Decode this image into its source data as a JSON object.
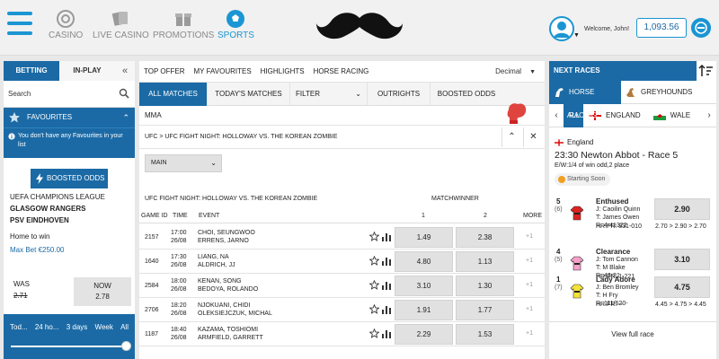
{
  "nav": {
    "items": [
      {
        "label": "CASINO",
        "icon": "casino-chip-icon"
      },
      {
        "label": "LIVE CASINO",
        "icon": "playing-cards-icon"
      },
      {
        "label": "PROMOTIONS",
        "icon": "gift-box-icon"
      },
      {
        "label": "SPORTS",
        "icon": "football-icon",
        "active": true
      }
    ]
  },
  "user": {
    "welcome": "Welcome, John!",
    "balance": "1,093.56"
  },
  "left": {
    "tabs": {
      "betting": "BETTING",
      "inplay": "IN-PLAY"
    },
    "search_label": "Search",
    "favourites": {
      "title": "FAVOURITES",
      "note": "You don't have any Favourites in your list"
    },
    "boost": {
      "badge": "BOOSTED ODDS",
      "league": "UEFA CHAMPIONS LEAGUE",
      "team1": "GLASGOW RANGERS",
      "team2": "PSV EINDHOVEN",
      "market": "Home to win",
      "maxbet": "Max Bet €250.00",
      "was_label": "WAS",
      "was_value": "2.71",
      "now_label": "NOW",
      "now_value": "2.78"
    },
    "time_filter": [
      "Tod...",
      "24 ho...",
      "3 days",
      "Week",
      "All"
    ]
  },
  "center": {
    "top_nav": [
      "TOP OFFER",
      "MY FAVOURITES",
      "HIGHLIGHTS",
      "HORSE RACING"
    ],
    "odds_format": "Decimal",
    "tabs": [
      "ALL MATCHES",
      "TODAY'S MATCHES",
      "FILTER",
      "OUTRIGHTS",
      "BOOSTED ODDS"
    ],
    "sport": "MMA",
    "event_header": "UFC > UFC FIGHT NIGHT: HOLLOWAY VS. THE KOREAN ZOMBIE",
    "market_select": "MAIN",
    "event_title": "UFC FIGHT NIGHT: HOLLOWAY VS. THE KOREAN ZOMBIE",
    "market_label": "MATCHWINNER",
    "columns": {
      "game_id": "GAME ID",
      "time": "TIME",
      "event": "EVENT",
      "col1": "1",
      "col2": "2",
      "more": "MORE"
    },
    "rows": [
      {
        "id": "2157",
        "time": "17:00",
        "date": "26/08",
        "f1": "CHOI, SEUNGWOO",
        "f2": "ERRENS, JARNO",
        "o1": "1.49",
        "o2": "2.38",
        "more": "+1"
      },
      {
        "id": "1640",
        "time": "17:30",
        "date": "26/08",
        "f1": "LIANG, NA",
        "f2": "ALDRICH, JJ",
        "o1": "4.80",
        "o2": "1.13",
        "more": "+1"
      },
      {
        "id": "2584",
        "time": "18:00",
        "date": "26/08",
        "f1": "KENAN, SONG",
        "f2": "BEDOYA, ROLANDO",
        "o1": "3.10",
        "o2": "1.30",
        "more": "+1"
      },
      {
        "id": "2706",
        "time": "18:20",
        "date": "26/08",
        "f1": "NJOKUANI, CHIDI",
        "f2": "OLEKSIEJCZUK, MICHAL",
        "o1": "1.91",
        "o2": "1.77",
        "more": "+1"
      },
      {
        "id": "1187",
        "time": "18:40",
        "date": "26/08",
        "f1": "KAZAMA, TOSHIOMI",
        "f2": "ARMFIELD, GARRETT",
        "o1": "2.29",
        "o2": "1.53",
        "more": "+1"
      }
    ]
  },
  "right": {
    "title": "NEXT RACES",
    "tabs": {
      "horse": "HORSE RACING",
      "greyhound": "GREYHOUNDS"
    },
    "regions": {
      "all": "ALL",
      "england": "ENGLAND",
      "wales": "WALE"
    },
    "race": {
      "country": "England",
      "title": "23:30 Newton Abbot - Race 5",
      "terms": "E/W:1/4 of win odd,2 place",
      "status": "Starting Soon"
    },
    "runners": [
      {
        "num": "5",
        "draw": "(6)",
        "name": "Enthused",
        "jockey": "J: Caoilin Quinn",
        "trainer": "T: James Owen",
        "rating": "R: 4-41322",
        "form": "HR.FR: 831-010",
        "odd": "2.90",
        "moves": "2.70 > 2.90 > 2.70",
        "silk_color": "#d22"
      },
      {
        "num": "4",
        "draw": "(5)",
        "name": "Clearance",
        "jockey": "J: Tom Cannon",
        "trainer": "T: M Blake",
        "rating": "R: 43-21",
        "form": "HR.FR: 1-221",
        "odd": "3.10",
        "moves": "",
        "silk_color": "#f4a0c8"
      },
      {
        "num": "1",
        "draw": "(7)",
        "name": "Lady Adore",
        "jockey": "J: Ben Bromley",
        "trainer": "T: H Fry",
        "rating": "R: 111/620-",
        "form": "HR.FR: --",
        "odd": "4.75",
        "moves": "4.45 > 4.75 > 4.45",
        "silk_color": "#f5e23a"
      }
    ],
    "view_full": "View full race"
  },
  "colors": {
    "brand": "#1b6aa5",
    "accent": "#1b95d3"
  }
}
